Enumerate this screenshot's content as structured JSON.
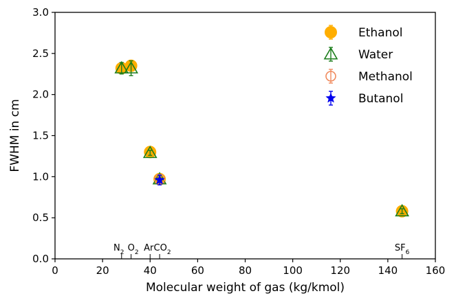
{
  "chart_data": {
    "type": "scatter",
    "title": "",
    "xlabel": "Molecular weight of gas (kg/kmol)",
    "ylabel": "FWHM in cm",
    "xlim": [
      0,
      160
    ],
    "ylim": [
      0.0,
      3.0
    ],
    "xticks": [
      0,
      20,
      40,
      60,
      80,
      100,
      120,
      140,
      160
    ],
    "yticks": [
      "0.0",
      "0.5",
      "1.0",
      "1.5",
      "2.0",
      "2.5",
      "3.0"
    ],
    "grid": false,
    "legend_position": "top-right",
    "series": [
      {
        "name": "Ethanol",
        "marker": "filled-circle",
        "color": "#ffae00",
        "points": [
          {
            "x": 28,
            "y": 2.32,
            "err": 0.06
          },
          {
            "x": 32,
            "y": 2.35,
            "err": 0.06
          },
          {
            "x": 40,
            "y": 1.3,
            "err": 0.03
          },
          {
            "x": 44,
            "y": 0.97,
            "err": 0.03
          },
          {
            "x": 146,
            "y": 0.58,
            "err": 0.03
          }
        ]
      },
      {
        "name": "Water",
        "marker": "open-triangle",
        "color": "#1b7d1b",
        "points": [
          {
            "x": 28,
            "y": 2.32,
            "err": 0.07
          },
          {
            "x": 32,
            "y": 2.32,
            "err": 0.09
          },
          {
            "x": 40,
            "y": 1.29,
            "err": 0.03
          },
          {
            "x": 44,
            "y": 0.97,
            "err": 0.03
          },
          {
            "x": 146,
            "y": 0.58,
            "err": 0.03
          }
        ]
      },
      {
        "name": "Methanol",
        "marker": "open-circle",
        "color": "#f08a5d",
        "points": [
          {
            "x": 44,
            "y": 0.97,
            "err": 0.03
          }
        ]
      },
      {
        "name": "Butanol",
        "marker": "star",
        "color": "#0000ee",
        "points": [
          {
            "x": 44,
            "y": 0.96,
            "err": 0.06
          }
        ]
      }
    ],
    "gas_labels": [
      {
        "x": 28,
        "text": "N",
        "sub": "2"
      },
      {
        "x": 32,
        "text": "O",
        "sub": "2"
      },
      {
        "x": 40,
        "text": "Ar",
        "sub": ""
      },
      {
        "x": 44,
        "text": "CO",
        "sub": "2"
      },
      {
        "x": 146,
        "text": "SF",
        "sub": "6"
      }
    ]
  }
}
